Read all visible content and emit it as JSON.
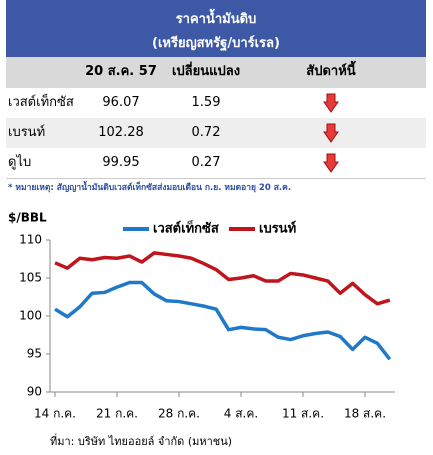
{
  "table": {
    "title": "ราคาน้ำมันดิบ",
    "subtitle": "(เหรียญสหรัฐ/บาร์เรล)",
    "header": [
      "20 ส.ค. 57",
      "เปลี่ยนแปลง",
      "สัปดาห์นี้"
    ],
    "rows": [
      [
        "เวสต์เท็กซัส",
        "96.07",
        "1.59"
      ],
      [
        "เบรนท์",
        "102.28",
        "0.72"
      ],
      [
        "ดูไบ",
        "99.95",
        "0.27"
      ]
    ],
    "note": "* หมายเหตุ: สัญญาน้ำมันดิบเวสต์เท็กซัสส่งมอบเดือน ก.ย. หมดอายุ 20 ส.ค."
  },
  "chart_data": {
    "type": "line",
    "y_label": "$/BBL",
    "source": "ที่มา: บริษัท ไทยออยล์ จำกัด (มหาชน)",
    "categories": [
      "14 ก.ค.",
      null,
      null,
      null,
      null,
      "21 ก.ค.",
      null,
      null,
      null,
      null,
      "28 ก.ค.",
      null,
      null,
      null,
      null,
      "4 ส.ค.",
      null,
      null,
      null,
      null,
      "11 ส.ค.",
      null,
      null,
      null,
      null,
      "18 ส.ค.",
      null,
      null
    ],
    "series": [
      {
        "name": "เวสต์เท็กซัส",
        "color": "#1f78c8",
        "values": [
          100.9,
          99.9,
          101.2,
          103.0,
          103.1,
          103.8,
          104.4,
          104.4,
          102.9,
          102.0,
          101.9,
          101.6,
          101.3,
          100.9,
          98.2,
          98.5,
          98.3,
          98.2,
          97.2,
          96.9,
          97.4,
          97.7,
          97.9,
          97.3,
          95.6,
          97.2,
          96.4,
          94.3
        ]
      },
      {
        "name": "เบรนท์",
        "color": "#c0151c",
        "values": [
          107.0,
          106.3,
          107.6,
          107.4,
          107.7,
          107.6,
          107.9,
          107.1,
          108.3,
          108.1,
          107.9,
          107.6,
          106.9,
          106.1,
          104.8,
          105.0,
          105.3,
          104.6,
          104.6,
          105.6,
          105.4,
          105.0,
          104.6,
          103.0,
          104.3,
          102.8,
          101.6,
          102.1
        ]
      }
    ],
    "ylim": [
      90,
      110
    ],
    "yticks": [
      90,
      95,
      100,
      105,
      110
    ]
  }
}
